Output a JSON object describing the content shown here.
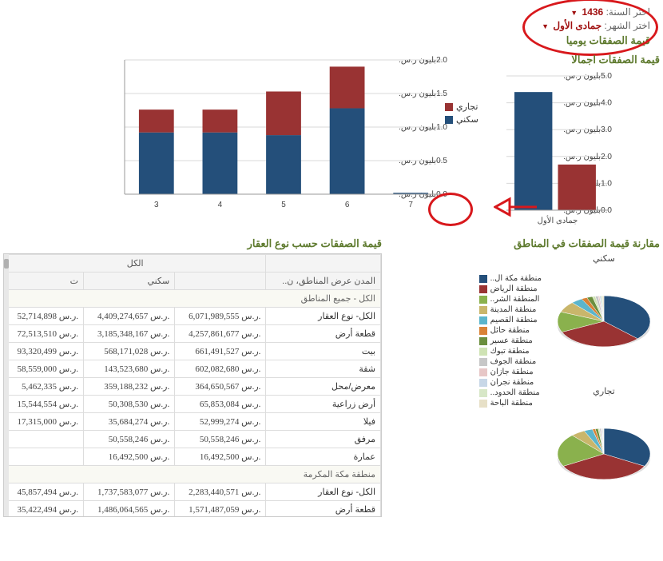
{
  "filters": {
    "year_label": "اختر السنة:",
    "year_value": "1436",
    "month_label": "اختر الشهر:",
    "month_value": "جمادى الأول"
  },
  "daily_chart": {
    "title": "قيمة الصفقات يوميا",
    "type": "stacked-bar",
    "categories": [
      "3",
      "4",
      "5",
      "6",
      "7"
    ],
    "series": [
      {
        "name": "سكني",
        "color": "#244f7a",
        "values": [
          0.92,
          0.92,
          0.88,
          1.28,
          0.02
        ]
      },
      {
        "name": "تجاري",
        "color": "#993333",
        "values": [
          0.34,
          0.34,
          0.65,
          0.62,
          0.0
        ]
      }
    ],
    "ylim": [
      0,
      2.0
    ],
    "ytick_step": 0.5,
    "y_unit": "بليون ر.س.",
    "bar_width": 0.55,
    "background_color": "#ffffff",
    "grid_color": "#d8d8d8",
    "legend_labels": {
      "commercial": "تجاري",
      "residential": "سكني"
    }
  },
  "total_chart": {
    "title": "قيمة الصفقات اجمالا",
    "type": "bar",
    "categories": [
      "جمادى الأول"
    ],
    "bars": [
      {
        "name": "سكني",
        "color": "#244f7a",
        "value": 4.4
      },
      {
        "name": "تجاري",
        "color": "#993333",
        "value": 1.7
      }
    ],
    "ylim": [
      0,
      5.0
    ],
    "ytick_step": 1.0,
    "y_unit": "بليون ر.س.",
    "background_color": "#ffffff",
    "grid_color": "#d8d8d8"
  },
  "table": {
    "title": "قيمة الصفقات حسب نوع العقار",
    "header_top": "الكل",
    "columns": [
      "المدن عرض المناطق، ن..",
      "",
      "سكني",
      "ت"
    ],
    "group1": "الكل - جميع المناطق",
    "group2": "منطقة مكة المكرمة",
    "rows1": [
      {
        "label": "الكل- نوع العقار",
        "c1": "6,071,989,555",
        "c2": "4,409,274,657",
        "c3": "52,714,898"
      },
      {
        "label": "قطعة أرض",
        "c1": "4,257,861,677",
        "c2": "3,185,348,167",
        "c3": "72,513,510"
      },
      {
        "label": "بيت",
        "c1": "661,491,527",
        "c2": "568,171,028",
        "c3": "93,320,499"
      },
      {
        "label": "شقة",
        "c1": "602,082,680",
        "c2": "143,523,680",
        "c3": "58,559,000"
      },
      {
        "label": "معرض/محل",
        "c1": "364,650,567",
        "c2": "359,188,232",
        "c3": "5,462,335"
      },
      {
        "label": "أرض زراعية",
        "c1": "65,853,084",
        "c2": "50,308,530",
        "c3": "15,544,554"
      },
      {
        "label": "فيلا",
        "c1": "52,999,274",
        "c2": "35,684,274",
        "c3": "17,315,000"
      },
      {
        "label": "مرفق",
        "c1": "50,558,246",
        "c2": "50,558,246",
        "c3": ""
      },
      {
        "label": "عمارة",
        "c1": "16,492,500",
        "c2": "16,492,500",
        "c3": ""
      }
    ],
    "rows2": [
      {
        "label": "الكل- نوع العقار",
        "c1": "2,283,440,571",
        "c2": "1,737,583,077",
        "c3": "45,857,494"
      },
      {
        "label": "قطعة أرض",
        "c1": "1,571,487,059",
        "c2": "1,486,064,565",
        "c3": "35,422,494"
      }
    ],
    "currency_suffix": "ر.س."
  },
  "region_comparison": {
    "title": "مقارنة قيمة الصفقات في المناطق",
    "pie_labels": {
      "residential": "سكني",
      "commercial": "تجاري"
    },
    "regions": [
      {
        "name": "منطقة مكة ال..",
        "color": "#244f7a"
      },
      {
        "name": "منطقة الرياض",
        "color": "#993333"
      },
      {
        "name": "المنطقة الشر..",
        "color": "#8ab14d"
      },
      {
        "name": "منطقة المدينة",
        "color": "#c9b66b"
      },
      {
        "name": "منطقة القصيم",
        "color": "#5bb5cc"
      },
      {
        "name": "منطقة حائل",
        "color": "#d98236"
      },
      {
        "name": "منطقة عسير",
        "color": "#6b8f3e"
      },
      {
        "name": "منطقة تبوك",
        "color": "#cfe3b4"
      },
      {
        "name": "منطقة الجوف",
        "color": "#c7c7c7"
      },
      {
        "name": "منطقة جازان",
        "color": "#e7c7c7"
      },
      {
        "name": "منطقة نجران",
        "color": "#c7d7e7"
      },
      {
        "name": "منطقة الحدود..",
        "color": "#d7e7c7"
      },
      {
        "name": "منطقة الباحة",
        "color": "#e7e0c7"
      }
    ],
    "residential_shares": [
      37,
      31,
      13,
      7,
      4,
      2,
      2,
      1,
      1,
      0.5,
      0.5,
      0.5,
      0.5
    ],
    "commercial_shares": [
      33,
      34,
      21,
      5,
      3,
      1,
      1,
      0.5,
      0.5,
      0.3,
      0.3,
      0.2,
      0.2
    ]
  },
  "annotation_colors": {
    "circle": "#d8181c",
    "arrow": "#d8181c"
  }
}
